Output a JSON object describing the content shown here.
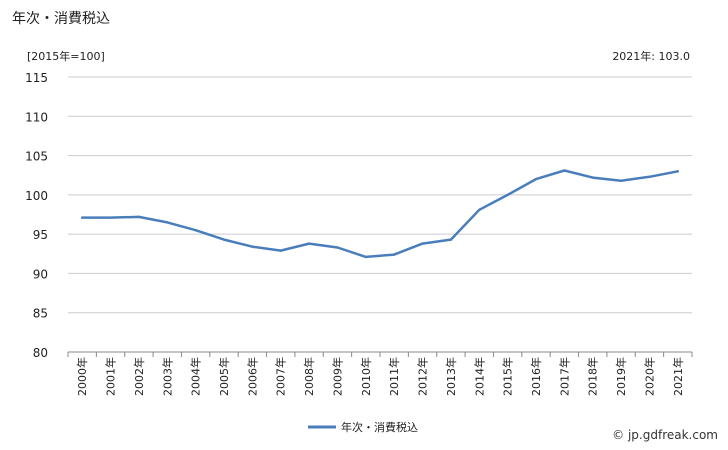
{
  "title": "年次・消費税込",
  "unit_label": "[2015年=100]",
  "latest_label": "2021年: 103.0",
  "credit": "© jp.gdfreak.com",
  "colors": {
    "series": "#4a7ebb",
    "grid": "#cccccc",
    "axis": "#888888"
  },
  "chart_data": {
    "type": "line",
    "title": "年次・消費税込",
    "ylabel": "[2015年=100]",
    "xlabel": "",
    "ylim": [
      80,
      115
    ],
    "yticks": [
      115,
      110,
      105,
      100,
      95,
      90,
      85,
      80
    ],
    "grid": true,
    "legend_position": "bottom",
    "categories": [
      "2000年",
      "2001年",
      "2002年",
      "2003年",
      "2004年",
      "2005年",
      "2006年",
      "2007年",
      "2008年",
      "2009年",
      "2010年",
      "2011年",
      "2012年",
      "2013年",
      "2014年",
      "2015年",
      "2016年",
      "2017年",
      "2018年",
      "2019年",
      "2020年",
      "2021年"
    ],
    "series": [
      {
        "name": "年次・消費税込",
        "values": [
          97.1,
          97.1,
          97.2,
          96.5,
          95.5,
          94.3,
          93.4,
          92.9,
          93.8,
          93.3,
          92.1,
          92.4,
          93.8,
          94.3,
          98.1,
          100.0,
          102.0,
          103.1,
          102.2,
          101.8,
          102.3,
          103.0
        ]
      }
    ]
  }
}
